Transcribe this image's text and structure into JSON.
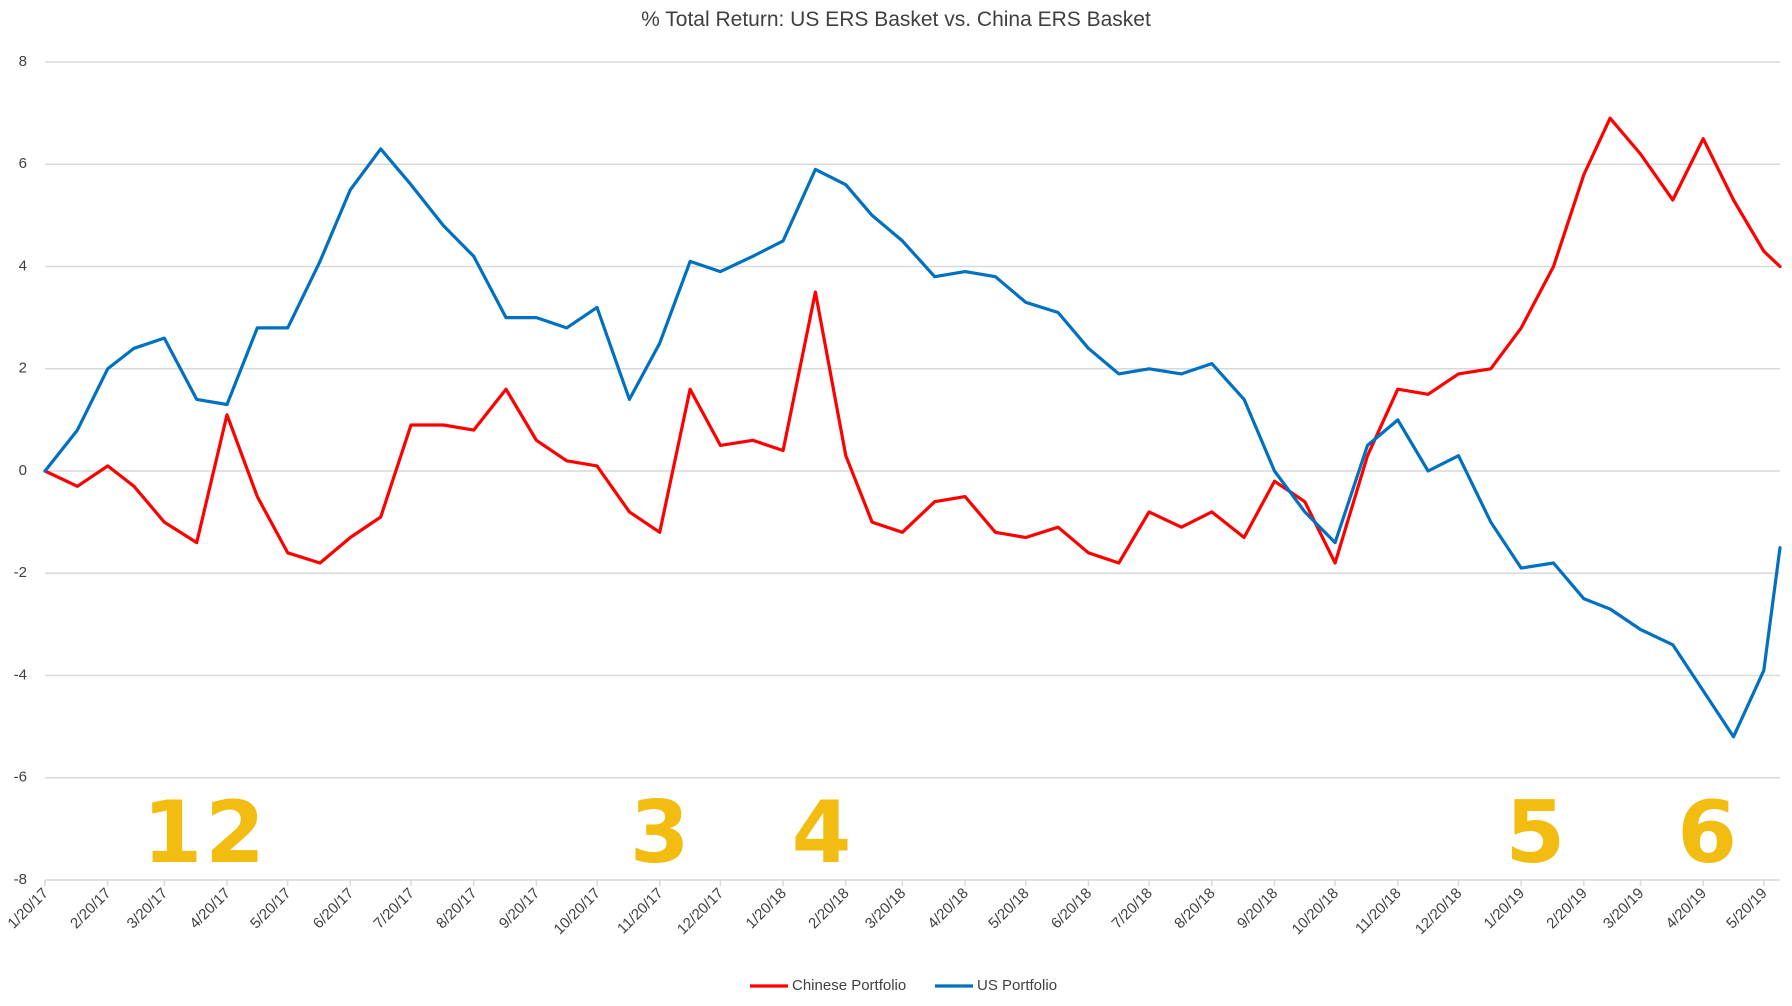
{
  "chart_data": {
    "type": "line",
    "title": "% Total Return: US ERS Basket vs. China ERS Basket",
    "xlabel": "",
    "ylabel": "",
    "ylim": [
      -8,
      8
    ],
    "yticks": [
      8,
      6,
      4,
      2,
      0,
      -2,
      -4,
      -6,
      -8
    ],
    "grid": true,
    "legend_position": "bottom",
    "x_tick_labels": [
      "1/20/17",
      "2/20/17",
      "3/20/17",
      "4/20/17",
      "5/20/17",
      "6/20/17",
      "7/20/17",
      "8/20/17",
      "9/20/17",
      "10/20/17",
      "11/20/17",
      "12/20/17",
      "1/20/18",
      "2/20/18",
      "3/20/18",
      "4/20/18",
      "5/20/18",
      "6/20/18",
      "7/20/18",
      "8/20/18",
      "9/20/18",
      "10/20/18",
      "11/20/18",
      "12/20/18",
      "1/20/19",
      "2/20/19",
      "3/20/19",
      "4/20/19",
      "5/20/19"
    ],
    "x": [
      "1/20/17",
      "2/5/17",
      "2/20/17",
      "3/5/17",
      "3/20/17",
      "4/5/17",
      "4/20/17",
      "5/5/17",
      "5/20/17",
      "6/5/17",
      "6/20/17",
      "7/5/17",
      "7/20/17",
      "8/5/17",
      "8/20/17",
      "9/5/17",
      "9/20/17",
      "10/5/17",
      "10/20/17",
      "11/5/17",
      "11/20/17",
      "12/5/17",
      "12/20/17",
      "1/5/18",
      "1/20/18",
      "2/5/18",
      "2/20/18",
      "3/5/18",
      "3/20/18",
      "4/5/18",
      "4/20/18",
      "5/5/18",
      "5/20/18",
      "6/5/18",
      "6/20/18",
      "7/5/18",
      "7/20/18",
      "8/5/18",
      "8/20/18",
      "9/5/18",
      "9/20/18",
      "10/5/18",
      "10/20/18",
      "11/5/18",
      "11/20/18",
      "12/5/18",
      "12/20/18",
      "1/5/19",
      "1/20/19",
      "2/5/19",
      "2/20/19",
      "3/5/19",
      "3/20/19",
      "4/5/19",
      "4/20/19",
      "5/5/19",
      "5/20/19",
      "5/28/19"
    ],
    "series": [
      {
        "name": "Chinese Portfolio",
        "color": "#ff0000",
        "values": [
          0.0,
          -0.3,
          0.1,
          -0.3,
          -1.0,
          -1.4,
          1.1,
          -0.5,
          -1.6,
          -1.8,
          -1.3,
          -0.9,
          0.9,
          0.9,
          0.8,
          1.6,
          0.6,
          0.2,
          0.1,
          -0.8,
          -1.2,
          1.6,
          0.5,
          0.6,
          0.4,
          3.5,
          0.3,
          -1.0,
          -1.2,
          -0.6,
          -0.5,
          -1.2,
          -1.3,
          -1.1,
          -1.6,
          -1.8,
          -0.8,
          -1.1,
          -0.8,
          -1.3,
          -0.2,
          -0.6,
          -1.8,
          0.3,
          1.6,
          1.5,
          1.9,
          2.0,
          2.8,
          4.0,
          5.8,
          6.9,
          6.2,
          5.3,
          6.5,
          5.3,
          4.3,
          4.0
        ]
      },
      {
        "name": "US Portfolio",
        "color": "#0070c0",
        "values": [
          0.0,
          0.8,
          2.0,
          2.4,
          2.6,
          1.4,
          1.3,
          2.8,
          2.8,
          4.1,
          5.5,
          6.3,
          5.6,
          4.8,
          4.2,
          3.0,
          3.0,
          2.8,
          3.2,
          1.4,
          2.5,
          4.1,
          3.9,
          4.2,
          4.5,
          5.9,
          5.6,
          5.0,
          4.5,
          3.8,
          3.9,
          3.8,
          3.3,
          3.1,
          2.4,
          1.9,
          2.0,
          1.9,
          2.1,
          1.4,
          0.0,
          -0.8,
          -1.4,
          0.5,
          1.0,
          0.0,
          0.3,
          -1.0,
          -1.9,
          -1.8,
          -2.5,
          -2.7,
          -3.1,
          -3.4,
          -4.3,
          -5.2,
          -3.9,
          -1.5
        ]
      }
    ],
    "annotations": [
      {
        "label": "1",
        "x": "3/24/17"
      },
      {
        "label": "2",
        "x": "4/24/17"
      },
      {
        "label": "3",
        "x": "11/20/17"
      },
      {
        "label": "4",
        "x": "2/8/18"
      },
      {
        "label": "5",
        "x": "1/27/19"
      },
      {
        "label": "6",
        "x": "4/22/19"
      }
    ]
  }
}
